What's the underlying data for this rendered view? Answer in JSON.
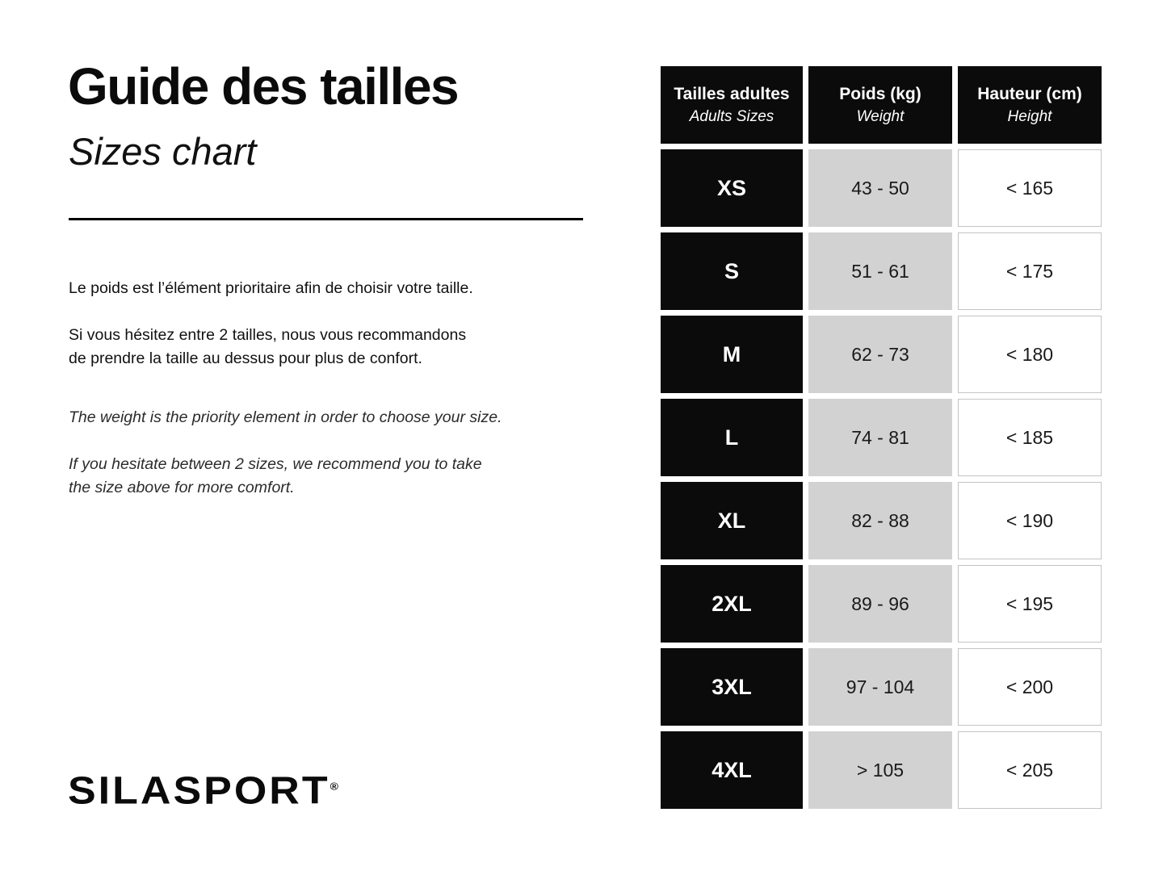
{
  "header": {
    "title_fr": "Guide des tailles",
    "title_en": "Sizes chart"
  },
  "notes": {
    "fr_1": "Le poids est l’élément prioritaire afin de choisir votre taille.",
    "fr_2": "Si vous hésitez entre 2 tailles, nous vous recommandons\nde prendre la taille au dessus pour plus de confort.",
    "en_1": "The weight is the priority element in order to choose your size.",
    "en_2": "If you hesitate between 2 sizes, we recommend you to take\nthe size above for more comfort."
  },
  "table": {
    "columns": [
      {
        "label": "Tailles adultes",
        "sublabel": "Adults Sizes"
      },
      {
        "label": "Poids (kg)",
        "sublabel": "Weight"
      },
      {
        "label": "Hauteur (cm)",
        "sublabel": "Height"
      }
    ],
    "rows": [
      {
        "size": "XS",
        "weight": "43 - 50",
        "height": "< 165"
      },
      {
        "size": "S",
        "weight": "51 - 61",
        "height": "< 175"
      },
      {
        "size": "M",
        "weight": "62 - 73",
        "height": "< 180"
      },
      {
        "size": "L",
        "weight": "74 - 81",
        "height": "< 185"
      },
      {
        "size": "XL",
        "weight": "82 - 88",
        "height": "< 190"
      },
      {
        "size": "2XL",
        "weight": "89 - 96",
        "height": "< 195"
      },
      {
        "size": "3XL",
        "weight": "97 - 104",
        "height": "< 200"
      },
      {
        "size": "4XL",
        "weight": "> 105",
        "height": "< 205"
      }
    ]
  },
  "footer": {
    "brand": "SILASPORT",
    "registered_mark": "®"
  },
  "colors": {
    "cell_black": "#0b0b0b",
    "cell_gray": "#d2d2d2",
    "cell_border": "#c4c4c4",
    "text_dark": "#1a1a1a"
  },
  "chart_data": {
    "type": "table",
    "title": "Guide des tailles / Sizes chart",
    "columns": [
      "Tailles adultes / Adults Sizes",
      "Poids (kg) / Weight",
      "Hauteur (cm) / Height"
    ],
    "rows": [
      [
        "XS",
        "43 - 50",
        "< 165"
      ],
      [
        "S",
        "51 - 61",
        "< 175"
      ],
      [
        "M",
        "62 - 73",
        "< 180"
      ],
      [
        "L",
        "74 - 81",
        "< 185"
      ],
      [
        "XL",
        "82 - 88",
        "< 190"
      ],
      [
        "2XL",
        "89 - 96",
        "< 195"
      ],
      [
        "3XL",
        "97 - 104",
        "< 200"
      ],
      [
        "4XL",
        "> 105",
        "< 205"
      ]
    ]
  }
}
